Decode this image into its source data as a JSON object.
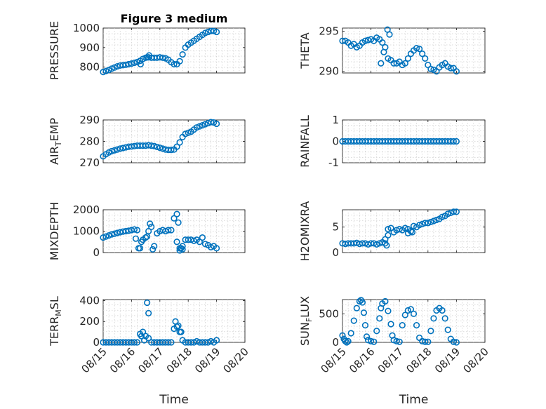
{
  "chart_data": [
    {
      "type": "scatter",
      "panel": "pressure",
      "title": "Figure 3 medium",
      "ylabel": "PRESSURE",
      "xlabel": "",
      "ylim": [
        770,
        1000
      ],
      "yticks": [
        800,
        900,
        1000
      ],
      "xlim": [
        0,
        5
      ],
      "xticks": [
        0,
        1,
        2,
        3,
        4,
        5
      ],
      "xticklabels": [
        "08/15",
        "08/16",
        "08/17",
        "08/18",
        "08/19",
        "08/20"
      ],
      "color": "#0072BD",
      "x": [
        0.0,
        0.1,
        0.2,
        0.3,
        0.4,
        0.5,
        0.6,
        0.7,
        0.8,
        0.9,
        1.0,
        1.1,
        1.2,
        1.3,
        1.4,
        1.5,
        1.6,
        1.7,
        1.8,
        1.9,
        2.0,
        2.1,
        2.2,
        2.3,
        2.4,
        2.5,
        2.6,
        2.7,
        2.8,
        2.9,
        3.0,
        3.1,
        3.2,
        3.3,
        3.4,
        3.5,
        3.6,
        3.7,
        3.8,
        3.9,
        4.0,
        1.32,
        1.55,
        1.62
      ],
      "y": [
        775,
        780,
        785,
        792,
        798,
        804,
        808,
        810,
        812,
        815,
        818,
        822,
        826,
        832,
        842,
        848,
        850,
        848,
        848,
        848,
        850,
        848,
        845,
        838,
        825,
        815,
        815,
        830,
        865,
        900,
        915,
        925,
        935,
        945,
        955,
        965,
        975,
        980,
        985,
        985,
        980,
        815,
        850,
        860
      ]
    },
    {
      "type": "scatter",
      "panel": "theta",
      "ylabel": "THETA",
      "xlabel": "",
      "ylim": [
        289.8,
        295.4
      ],
      "yticks": [
        290,
        295
      ],
      "xlim": [
        0,
        5
      ],
      "xticks": [
        0,
        1,
        2,
        3,
        4,
        5
      ],
      "xticklabels": [
        "08/15",
        "08/16",
        "08/17",
        "08/18",
        "08/19",
        "08/20"
      ],
      "color": "#0072BD",
      "x": [
        0.0,
        0.1,
        0.2,
        0.3,
        0.4,
        0.5,
        0.6,
        0.7,
        0.8,
        0.9,
        1.0,
        1.1,
        1.2,
        1.3,
        1.4,
        1.5,
        1.6,
        1.7,
        1.8,
        1.9,
        2.0,
        2.1,
        2.2,
        2.3,
        2.4,
        2.5,
        2.6,
        2.7,
        2.8,
        2.9,
        3.0,
        3.1,
        3.2,
        3.3,
        3.4,
        3.5,
        3.6,
        3.7,
        3.8,
        3.9,
        4.0,
        1.58,
        1.65,
        1.45,
        1.35
      ],
      "y": [
        293.8,
        293.8,
        293.6,
        293.2,
        293.4,
        293.0,
        293.2,
        293.6,
        293.8,
        293.9,
        294.0,
        293.8,
        294.2,
        294.0,
        293.6,
        293.0,
        291.6,
        291.4,
        291.0,
        291.0,
        291.2,
        290.8,
        291.0,
        291.6,
        292.2,
        292.6,
        292.9,
        292.8,
        292.2,
        291.6,
        290.8,
        290.3,
        290.2,
        290.0,
        290.5,
        290.8,
        291.0,
        290.6,
        290.4,
        290.4,
        290.0,
        295.2,
        294.6,
        292.4,
        291.0
      ]
    },
    {
      "type": "scatter",
      "panel": "air_temp",
      "ylabel": "AIR_TEMP",
      "xlabel": "",
      "ylim": [
        270,
        290
      ],
      "yticks": [
        270,
        280,
        290
      ],
      "xlim": [
        0,
        5
      ],
      "xticks": [
        0,
        1,
        2,
        3,
        4,
        5
      ],
      "xticklabels": [
        "08/15",
        "08/16",
        "08/17",
        "08/18",
        "08/19",
        "08/20"
      ],
      "color": "#0072BD",
      "x": [
        0.0,
        0.1,
        0.2,
        0.3,
        0.4,
        0.5,
        0.6,
        0.7,
        0.8,
        0.9,
        1.0,
        1.1,
        1.2,
        1.3,
        1.4,
        1.5,
        1.6,
        1.7,
        1.8,
        1.9,
        2.0,
        2.1,
        2.2,
        2.3,
        2.4,
        2.5,
        2.6,
        2.7,
        2.8,
        2.9,
        3.0,
        3.1,
        3.2,
        3.3,
        3.4,
        3.5,
        3.6,
        3.7,
        3.8,
        3.9,
        4.0
      ],
      "y": [
        273,
        274,
        274.8,
        275.4,
        275.8,
        276.2,
        276.6,
        276.9,
        277.2,
        277.5,
        277.6,
        277.8,
        278.0,
        278.0,
        278.0,
        278.0,
        278.2,
        278.0,
        277.8,
        277.4,
        277.0,
        276.6,
        276.2,
        276.0,
        276.0,
        276.2,
        277.5,
        279.5,
        282,
        283.5,
        284,
        284.5,
        285.5,
        286.5,
        287,
        287.5,
        288,
        288.5,
        289,
        288.8,
        288.2
      ]
    },
    {
      "type": "scatter",
      "panel": "rainfall",
      "ylabel": "RAINFALL",
      "xlabel": "",
      "ylim": [
        -1,
        1
      ],
      "yticks": [
        -1,
        0,
        1
      ],
      "xlim": [
        0,
        5
      ],
      "xticks": [
        0,
        1,
        2,
        3,
        4,
        5
      ],
      "xticklabels": [
        "08/15",
        "08/16",
        "08/17",
        "08/18",
        "08/19",
        "08/20"
      ],
      "color": "#0072BD",
      "x": [
        0.0,
        0.1,
        0.2,
        0.3,
        0.4,
        0.5,
        0.6,
        0.7,
        0.8,
        0.9,
        1.0,
        1.1,
        1.2,
        1.3,
        1.4,
        1.5,
        1.6,
        1.7,
        1.8,
        1.9,
        2.0,
        2.1,
        2.2,
        2.3,
        2.4,
        2.5,
        2.6,
        2.7,
        2.8,
        2.9,
        3.0,
        3.1,
        3.2,
        3.3,
        3.4,
        3.5,
        3.6,
        3.7,
        3.8,
        3.9,
        4.0
      ],
      "y": [
        0,
        0,
        0,
        0,
        0,
        0,
        0,
        0,
        0,
        0,
        0,
        0,
        0,
        0,
        0,
        0,
        0,
        0,
        0,
        0,
        0,
        0,
        0,
        0,
        0,
        0,
        0,
        0,
        0,
        0,
        0,
        0,
        0,
        0,
        0,
        0,
        0,
        0,
        0,
        0,
        0
      ]
    },
    {
      "type": "scatter",
      "panel": "mixdepth",
      "ylabel": "MIXDEPTH",
      "xlabel": "",
      "ylim": [
        0,
        2000
      ],
      "yticks": [
        0,
        1000,
        2000
      ],
      "xlim": [
        0,
        5
      ],
      "xticks": [
        0,
        1,
        2,
        3,
        4,
        5
      ],
      "xticklabels": [
        "08/15",
        "08/16",
        "08/17",
        "08/18",
        "08/19",
        "08/20"
      ],
      "color": "#0072BD",
      "x": [
        0.0,
        0.1,
        0.2,
        0.3,
        0.4,
        0.5,
        0.6,
        0.7,
        0.8,
        0.9,
        1.0,
        1.1,
        1.2,
        1.3,
        1.4,
        1.5,
        1.6,
        1.7,
        1.8,
        1.9,
        2.0,
        2.1,
        2.2,
        2.3,
        2.4,
        2.5,
        2.6,
        2.7,
        2.8,
        2.9,
        3.0,
        3.1,
        3.2,
        3.3,
        3.4,
        3.5,
        3.6,
        3.7,
        3.8,
        3.9,
        4.0,
        1.15,
        1.25,
        1.35,
        1.55,
        1.65,
        1.75,
        2.6,
        2.65,
        2.7,
        2.75,
        2.8
      ],
      "y": [
        700,
        750,
        800,
        850,
        880,
        920,
        950,
        980,
        1000,
        1020,
        1050,
        1080,
        1050,
        200,
        600,
        700,
        1000,
        1200,
        300,
        900,
        1000,
        1050,
        1000,
        1050,
        1050,
        1600,
        500,
        200,
        300,
        600,
        600,
        600,
        550,
        600,
        500,
        700,
        400,
        350,
        250,
        300,
        200,
        650,
        200,
        500,
        750,
        1350,
        150,
        1800,
        1400,
        100,
        200,
        150
      ]
    },
    {
      "type": "scatter",
      "panel": "h2omixra",
      "ylabel": "H2OMIXRA",
      "xlabel": "",
      "ylim": [
        0,
        8.4
      ],
      "yticks": [
        0,
        5
      ],
      "xlim": [
        0,
        5
      ],
      "xticks": [
        0,
        1,
        2,
        3,
        4,
        5
      ],
      "xticklabels": [
        "08/15",
        "08/16",
        "08/17",
        "08/18",
        "08/19",
        "08/20"
      ],
      "color": "#0072BD",
      "x": [
        0.0,
        0.1,
        0.2,
        0.3,
        0.4,
        0.5,
        0.6,
        0.7,
        0.8,
        0.9,
        1.0,
        1.1,
        1.2,
        1.3,
        1.4,
        1.5,
        1.6,
        1.7,
        1.8,
        1.9,
        2.0,
        2.1,
        2.2,
        2.3,
        2.4,
        2.5,
        2.6,
        2.7,
        2.8,
        2.9,
        3.0,
        3.1,
        3.2,
        3.3,
        3.4,
        3.5,
        3.6,
        3.7,
        3.8,
        3.9,
        4.0,
        1.5,
        1.55,
        1.6,
        2.3,
        2.45
      ],
      "y": [
        1.8,
        1.7,
        1.8,
        1.8,
        1.8,
        1.9,
        1.7,
        1.8,
        1.8,
        1.6,
        1.8,
        1.8,
        1.6,
        1.8,
        2.0,
        1.8,
        4.6,
        4.8,
        4.0,
        4.4,
        4.6,
        4.4,
        4.8,
        4.6,
        4.2,
        5.2,
        5.0,
        5.4,
        5.6,
        5.8,
        5.8,
        6.0,
        6.2,
        6.4,
        6.6,
        7.0,
        7.2,
        7.6,
        7.8,
        8.0,
        8.0,
        2.6,
        1.4,
        3.4,
        3.8,
        4.0
      ]
    },
    {
      "type": "scatter",
      "panel": "terr_msl",
      "ylabel": "TERR_MSL",
      "xlabel": "Time",
      "ylim": [
        0,
        410
      ],
      "yticks": [
        0,
        200,
        400
      ],
      "xlim": [
        0,
        5
      ],
      "xticks": [
        0,
        1,
        2,
        3,
        4,
        5
      ],
      "xticklabels": [
        "08/15",
        "08/16",
        "08/17",
        "08/18",
        "08/19",
        "08/20"
      ],
      "color": "#0072BD",
      "x": [
        0.0,
        0.1,
        0.2,
        0.3,
        0.4,
        0.5,
        0.6,
        0.7,
        0.8,
        0.9,
        1.0,
        1.1,
        1.2,
        1.3,
        1.4,
        1.5,
        1.6,
        1.7,
        1.8,
        1.9,
        2.0,
        2.1,
        2.2,
        2.3,
        2.4,
        2.5,
        2.6,
        2.7,
        2.8,
        2.9,
        3.0,
        3.1,
        3.2,
        3.3,
        3.4,
        3.5,
        3.6,
        3.7,
        3.8,
        3.9,
        4.0,
        1.55,
        1.6,
        1.35,
        1.45,
        2.55,
        2.65,
        2.75
      ],
      "y": [
        0,
        0,
        0,
        0,
        0,
        0,
        0,
        0,
        0,
        0,
        0,
        0,
        0,
        80,
        100,
        60,
        40,
        0,
        0,
        0,
        0,
        0,
        0,
        0,
        0,
        130,
        150,
        100,
        20,
        0,
        0,
        0,
        0,
        10,
        0,
        0,
        0,
        0,
        10,
        0,
        20,
        380,
        280,
        60,
        20,
        200,
        160,
        100
      ]
    },
    {
      "type": "scatter",
      "panel": "sun_flux",
      "ylabel": "SUN_FLUX",
      "xlabel": "Time",
      "ylim": [
        0,
        750
      ],
      "yticks": [
        0,
        500
      ],
      "xlim": [
        0,
        5
      ],
      "xticks": [
        0,
        1,
        2,
        3,
        4,
        5
      ],
      "xticklabels": [
        "08/15",
        "08/16",
        "08/17",
        "08/18",
        "08/19",
        "08/20"
      ],
      "color": "#0072BD",
      "x": [
        0.0,
        0.05,
        0.1,
        0.15,
        0.2,
        0.3,
        0.4,
        0.5,
        0.6,
        0.65,
        0.7,
        0.75,
        0.8,
        0.85,
        0.9,
        1.0,
        1.1,
        1.2,
        1.3,
        1.35,
        1.4,
        1.5,
        1.6,
        1.7,
        1.75,
        1.8,
        1.9,
        2.0,
        2.1,
        2.2,
        2.3,
        2.4,
        2.5,
        2.6,
        2.7,
        2.8,
        2.9,
        3.0,
        3.1,
        3.2,
        3.3,
        3.4,
        3.5,
        3.6,
        3.7,
        3.8,
        3.9,
        4.0
      ],
      "y": [
        120,
        60,
        20,
        0,
        20,
        160,
        380,
        600,
        720,
        740,
        700,
        520,
        300,
        100,
        40,
        20,
        10,
        200,
        420,
        600,
        680,
        720,
        550,
        320,
        120,
        40,
        20,
        10,
        300,
        480,
        560,
        580,
        500,
        300,
        80,
        20,
        10,
        10,
        200,
        420,
        560,
        600,
        560,
        420,
        220,
        60,
        10,
        0
      ]
    }
  ]
}
